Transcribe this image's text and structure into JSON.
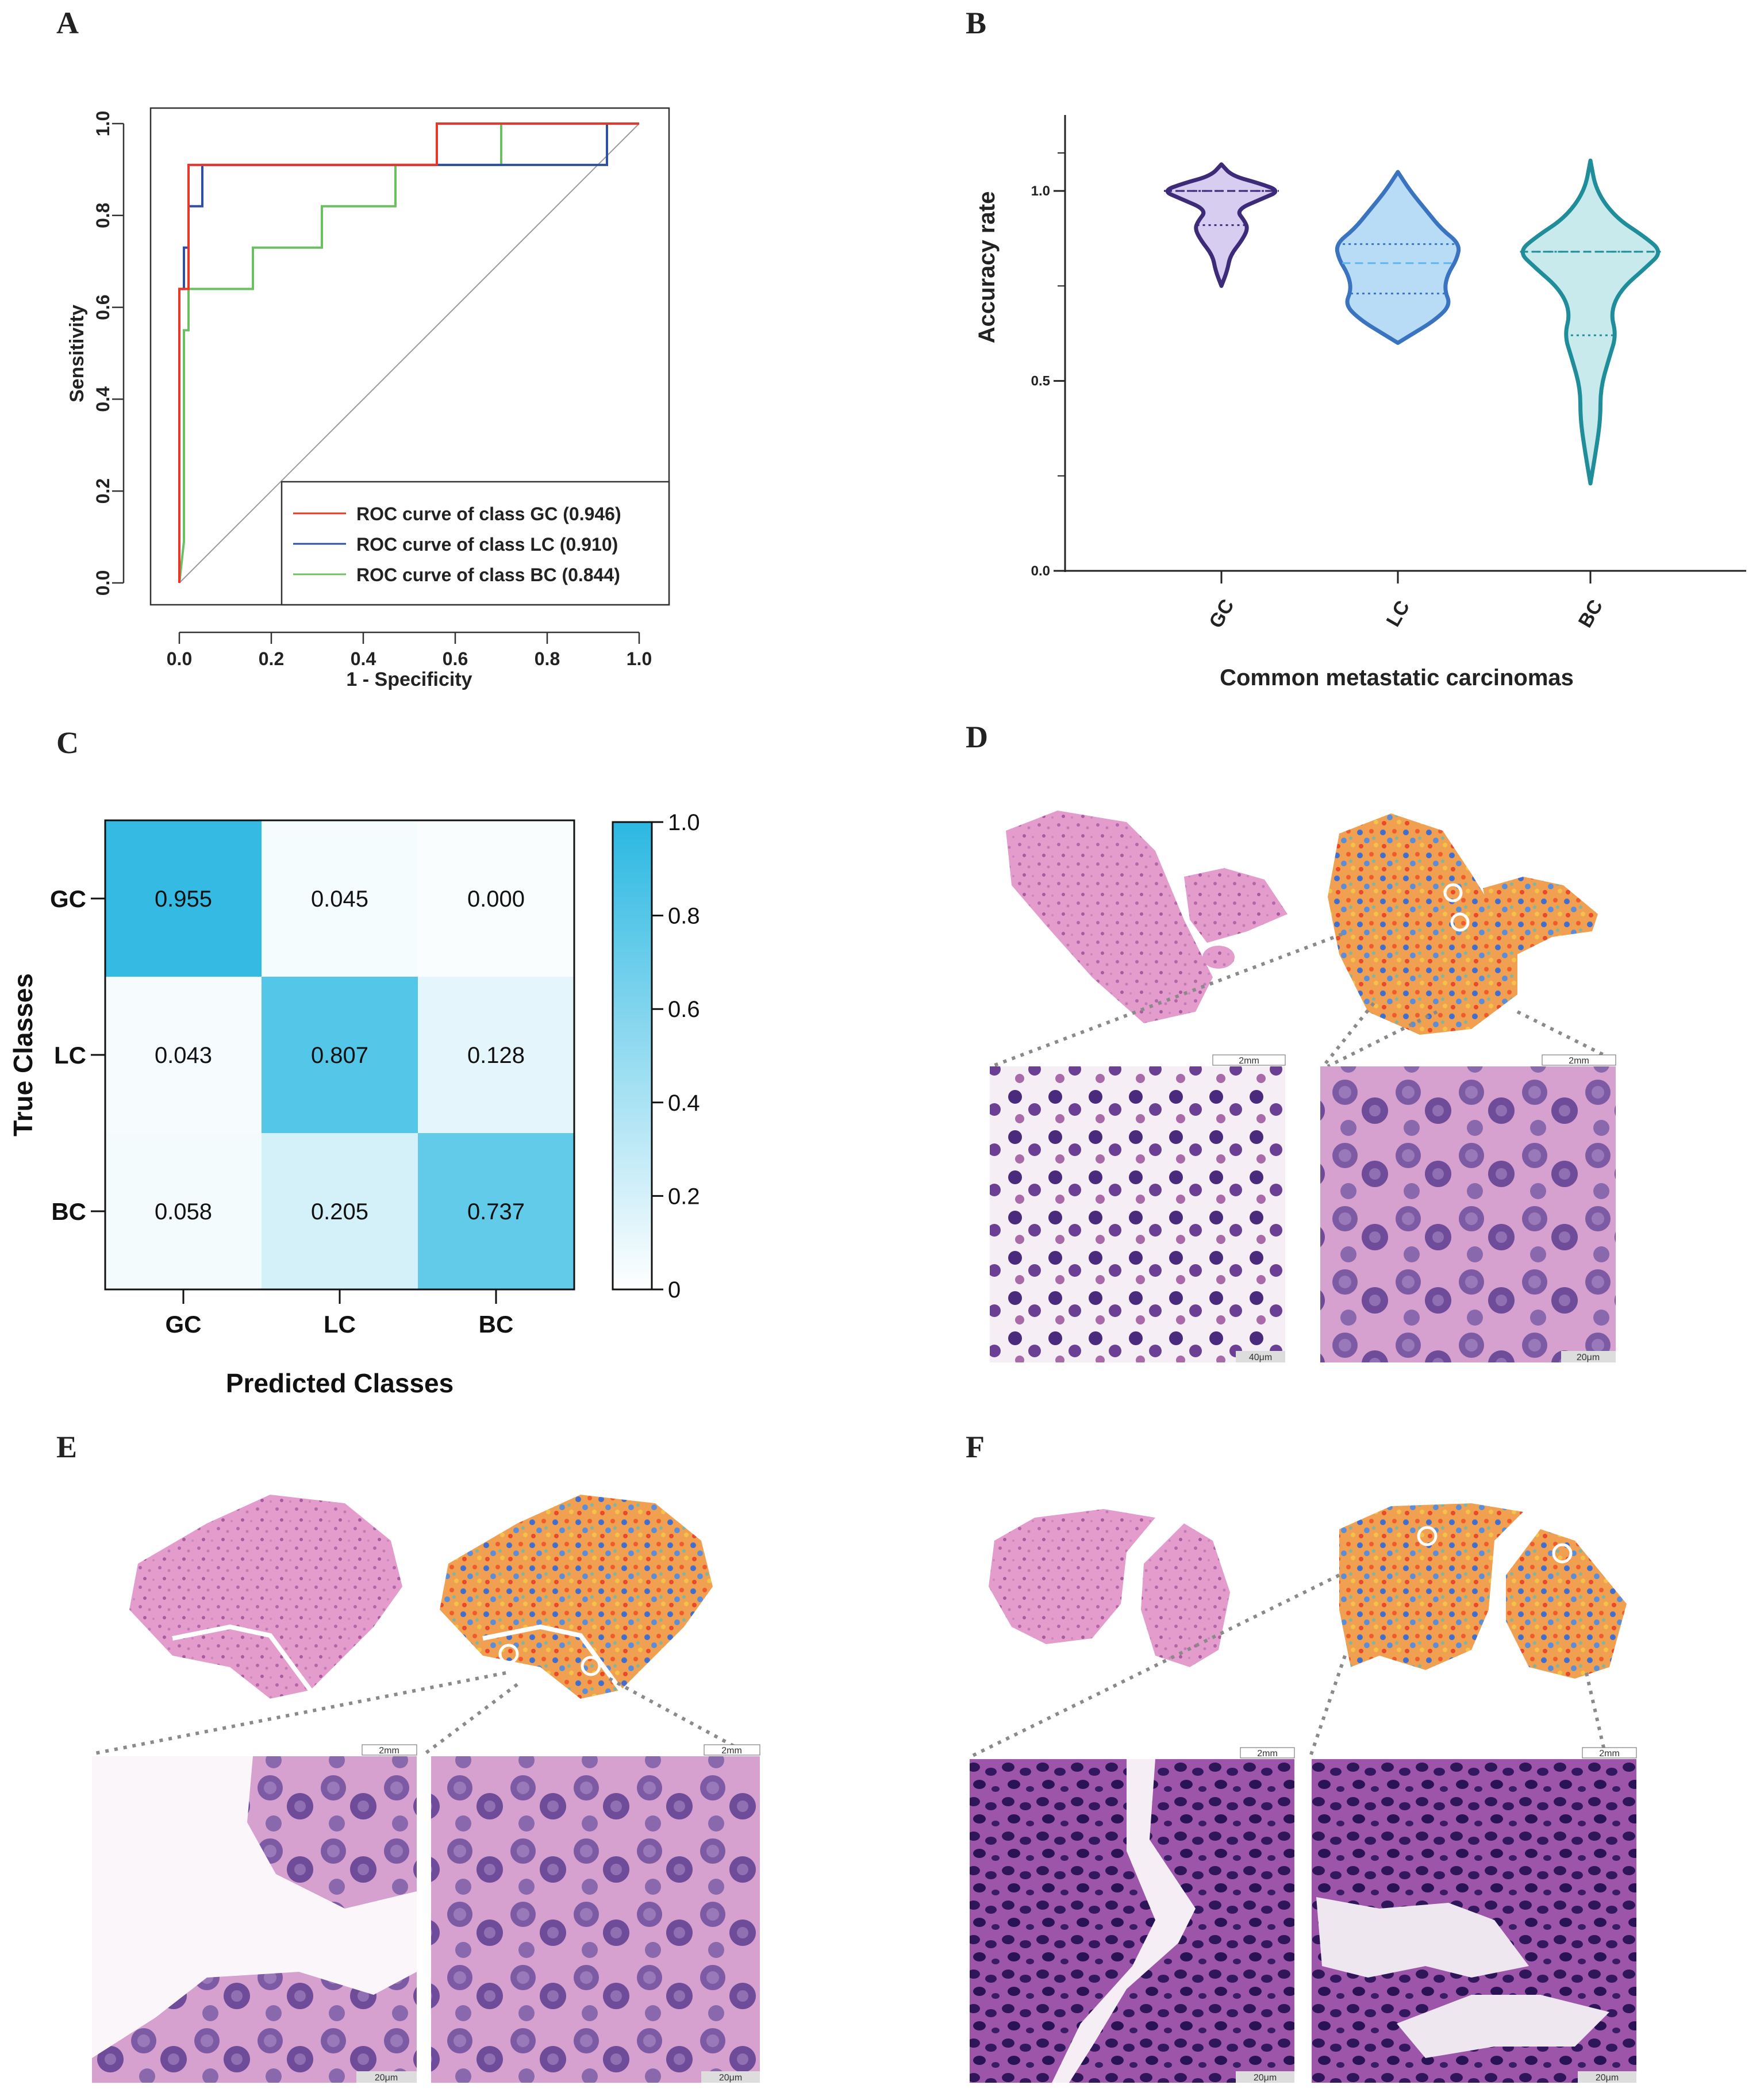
{
  "panels": [
    "A",
    "B",
    "C",
    "D",
    "E",
    "F"
  ],
  "chart_data": [
    {
      "panel": "A",
      "type": "line",
      "xlabel": "1 - Specificity",
      "ylabel": "Sensitivity",
      "xlim": [
        0,
        1
      ],
      "ylim": [
        0,
        1
      ],
      "xticks": [
        "0.0",
        "0.2",
        "0.4",
        "0.6",
        "0.8",
        "1.0"
      ],
      "yticks": [
        "0.0",
        "0.2",
        "0.4",
        "0.6",
        "0.8",
        "1.0"
      ],
      "legend_position": "bottom-right",
      "series": [
        {
          "name": "ROC curve of class GC (0.946)",
          "color": "#e8362b",
          "x": [
            0,
            0,
            0.02,
            0.02,
            0.56,
            0.56,
            1.0
          ],
          "y": [
            0,
            0.64,
            0.64,
            0.91,
            0.91,
            1.0,
            1.0
          ]
        },
        {
          "name": "ROC curve of class LC (0.910)",
          "color": "#2f4fa0",
          "x": [
            0,
            0,
            0.01,
            0.01,
            0.02,
            0.02,
            0.05,
            0.05,
            0.93,
            0.93,
            1.0
          ],
          "y": [
            0,
            0.64,
            0.64,
            0.73,
            0.73,
            0.82,
            0.82,
            0.91,
            0.91,
            1.0,
            1.0
          ]
        },
        {
          "name": "ROC curve of class BC (0.844)",
          "color": "#6cc063",
          "x": [
            0,
            0.01,
            0.01,
            0.02,
            0.02,
            0.04,
            0.04,
            0.16,
            0.16,
            0.31,
            0.31,
            0.47,
            0.47,
            0.7,
            0.7,
            1.0
          ],
          "y": [
            0,
            0.09,
            0.55,
            0.55,
            0.64,
            0.64,
            0.64,
            0.64,
            0.73,
            0.73,
            0.82,
            0.82,
            0.91,
            0.91,
            1.0,
            1.0
          ]
        }
      ]
    },
    {
      "panel": "B",
      "type": "violin",
      "xlabel": "Common metastatic carcinomas",
      "ylabel": "Accuracy rate",
      "ylim": [
        0,
        1.2
      ],
      "yticks": [
        "0.0",
        "0.5",
        "1.0"
      ],
      "categories": [
        "GC",
        "LC",
        "BC"
      ],
      "series": [
        {
          "name": "GC",
          "stroke": "#3d2a78",
          "fill": "#d6cdf0",
          "min": 0.75,
          "max": 1.07,
          "median": 1.0,
          "q1": 0.91,
          "q3": 1.0
        },
        {
          "name": "LC",
          "stroke": "#3a74c0",
          "fill": "#b8dcf6",
          "min": 0.6,
          "max": 1.05,
          "median": 0.81,
          "q1": 0.73,
          "q3": 0.86
        },
        {
          "name": "BC",
          "stroke": "#1f8e9a",
          "fill": "#c9eaec",
          "min": 0.23,
          "max": 1.08,
          "median": 0.84,
          "q1": 0.62,
          "q3": 0.84
        }
      ]
    },
    {
      "panel": "C",
      "type": "heatmap",
      "xlabel": "Predicted Classes",
      "ylabel": "True Classes",
      "x_categories": [
        "GC",
        "LC",
        "BC"
      ],
      "y_categories": [
        "GC",
        "LC",
        "BC"
      ],
      "values": [
        [
          0.955,
          0.045,
          0.0
        ],
        [
          0.043,
          0.807,
          0.128
        ],
        [
          0.058,
          0.205,
          0.737
        ]
      ],
      "value_labels": [
        [
          "0.955",
          "0.045",
          "0.000"
        ],
        [
          "0.043",
          "0.807",
          "0.128"
        ],
        [
          "0.058",
          "0.205",
          "0.737"
        ]
      ],
      "colorbar_ticks": [
        "1.0",
        "0.8",
        "0.6",
        "0.4",
        "0.2",
        "0"
      ],
      "colorscale": [
        "#ffffff",
        "#2bb8e2"
      ]
    }
  ],
  "micrographs": {
    "D": {
      "scale_labels": [
        "2mm",
        "2mm",
        "40μm",
        "20μm"
      ]
    },
    "E": {
      "scale_labels": [
        "2mm",
        "2mm",
        "20μm",
        "20μm"
      ]
    },
    "F": {
      "scale_labels": [
        "2mm",
        "2mm",
        "20μm",
        "20μm"
      ]
    }
  },
  "colors": {
    "he_stain": "#d27cb6",
    "heatmap_hot": "#f25a2c",
    "heatmap_warm": "#f2a23a",
    "heatmap_cool": "#3c6fd0",
    "nucleus": "#3b1d6e",
    "cytoplasm": "#b55ea8"
  }
}
